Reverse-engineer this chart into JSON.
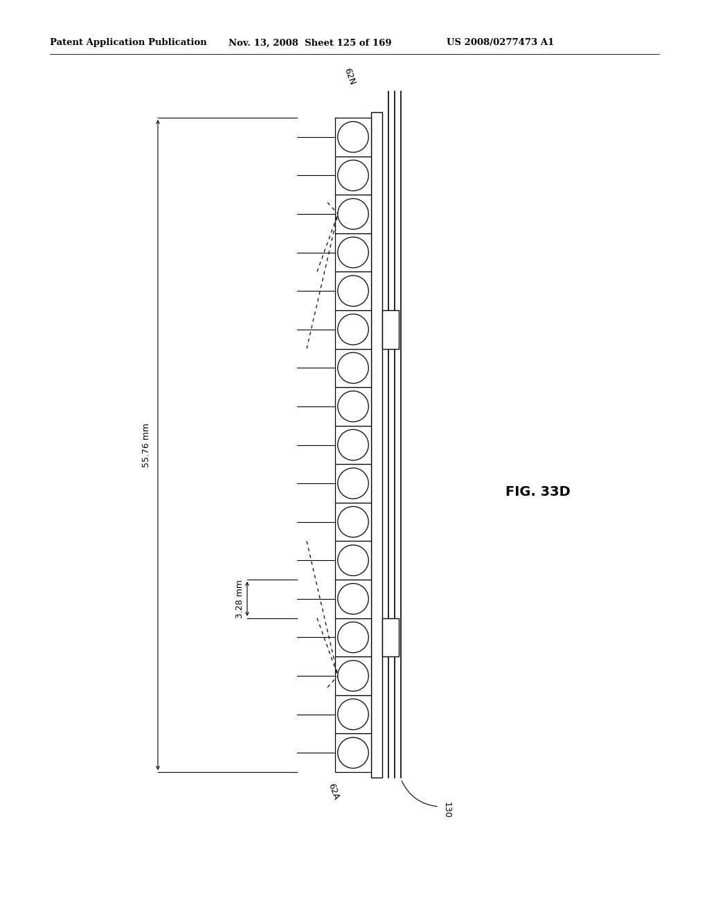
{
  "title_left": "Patent Application Publication",
  "title_mid": "Nov. 13, 2008  Sheet 125 of 169",
  "title_right": "US 2008/0277473 A1",
  "fig_label": "FIG. 33D",
  "label_62N": "62N",
  "label_62A": "62A",
  "label_130": "130",
  "label_dim1": "55.76 mm",
  "label_dim2": "3.28 mm",
  "num_leds": 17,
  "bg_color": "#ffffff",
  "line_color": "#000000"
}
